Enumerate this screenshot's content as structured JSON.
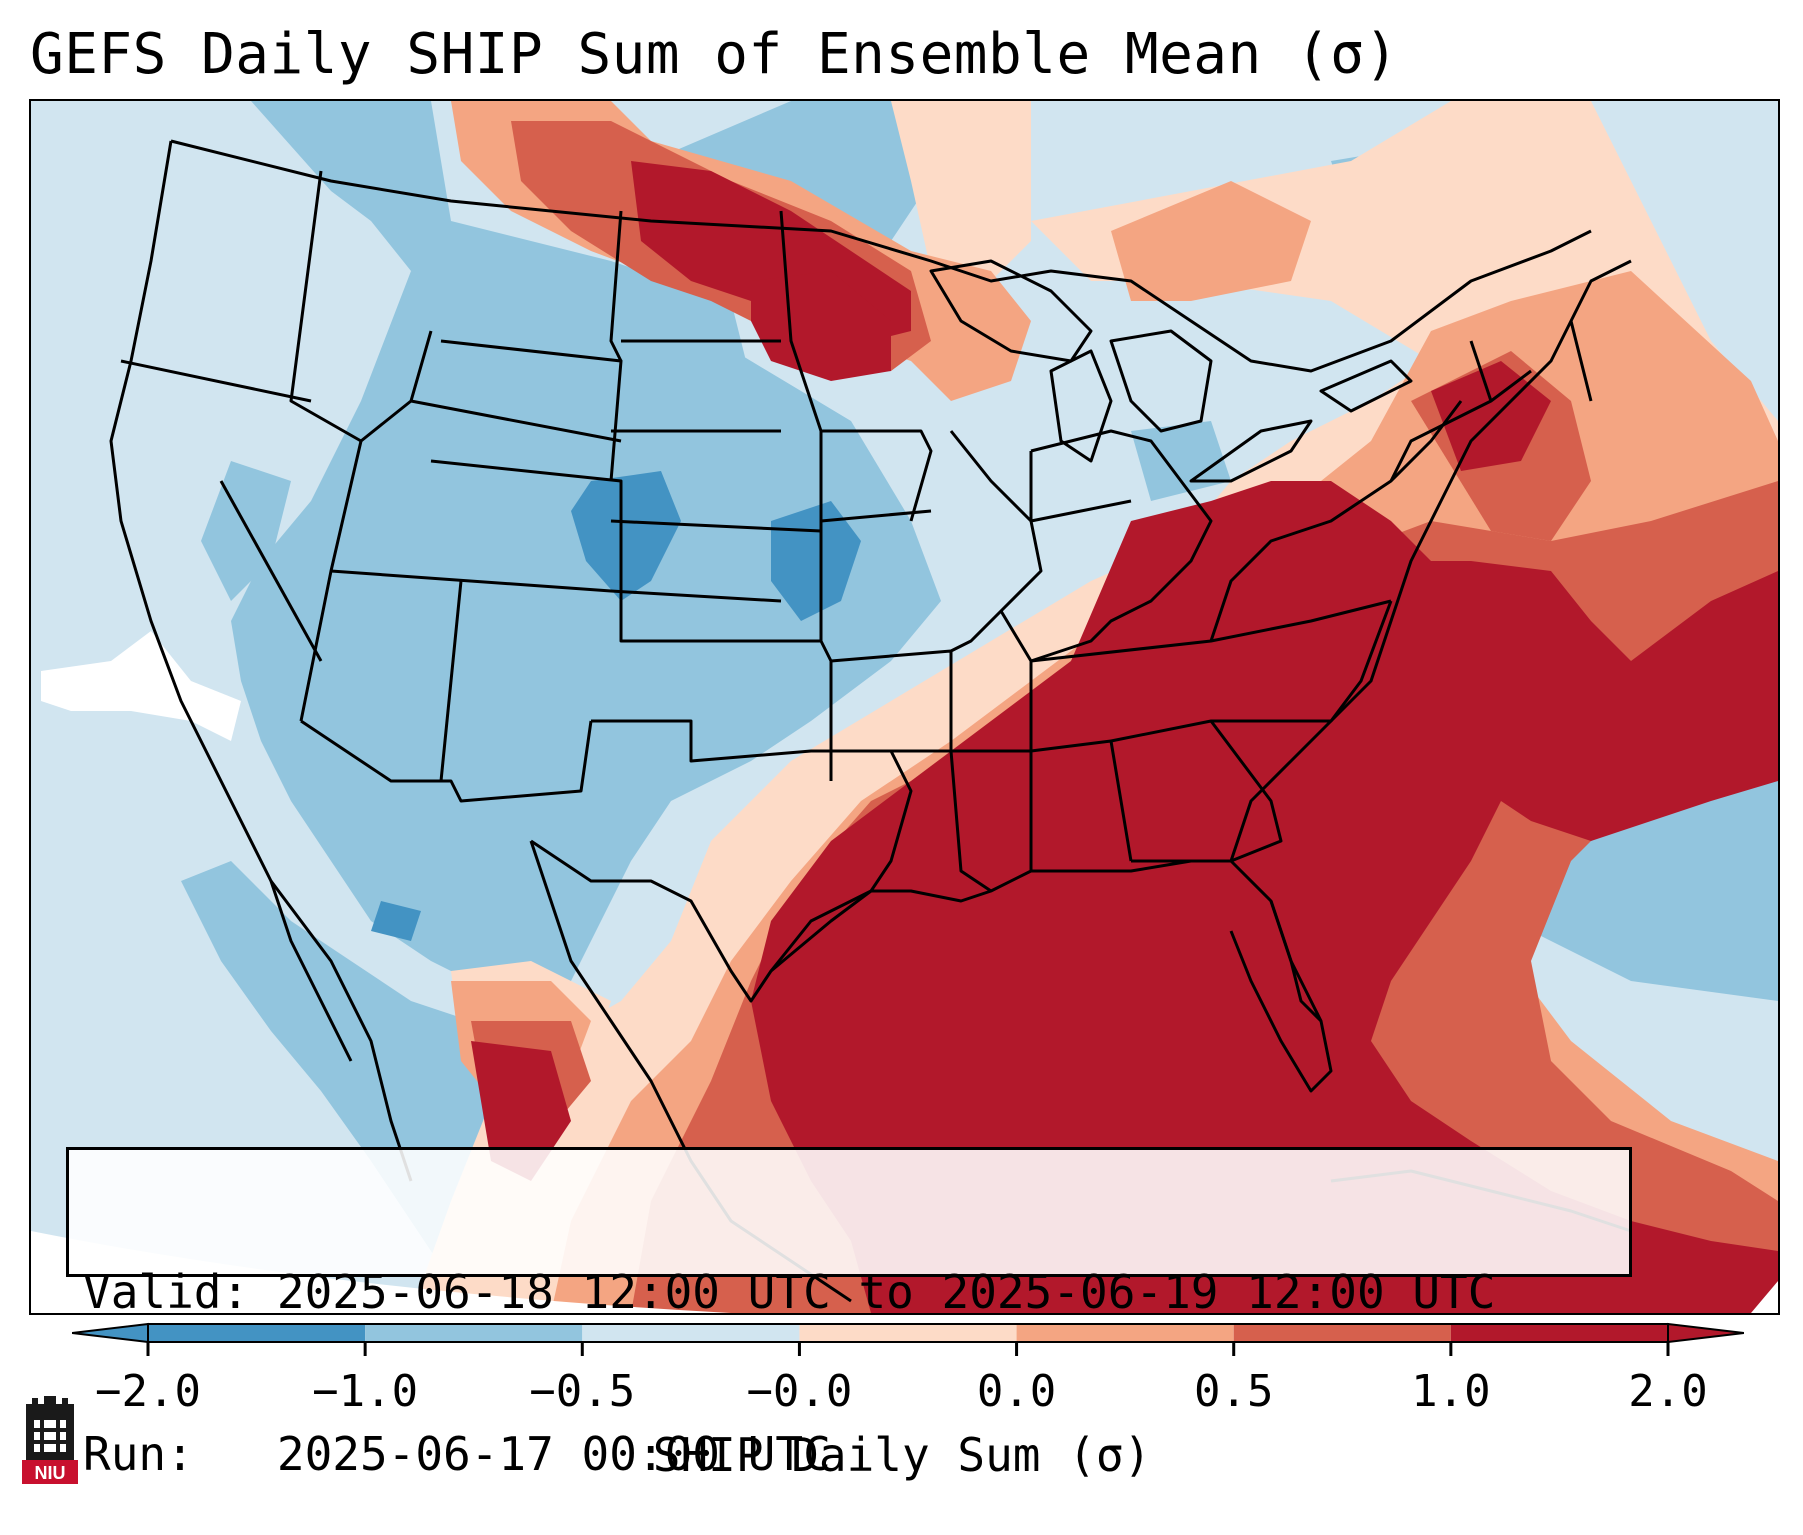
{
  "title": "GEFS Daily SHIP Sum of Ensemble Mean (σ)",
  "info": {
    "valid_label": "Valid:",
    "valid_value": "2025-06-18 12:00 UTC to 2025-06-19 12:00 UTC",
    "run_label": "Run:",
    "run_value": "2025-06-17 00:00 UTC"
  },
  "colorbar": {
    "label": "SHIP Daily Sum (σ)",
    "ticks": [
      "−2.0",
      "−1.0",
      "−0.5",
      "−0.0",
      "0.0",
      "0.5",
      "1.0",
      "2.0"
    ],
    "colors": [
      "#4393c3",
      "#92c5de",
      "#d1e5f0",
      "#ffffff",
      "#fddbc7",
      "#f4a582",
      "#d6604d",
      "#b2182b"
    ],
    "extend": "both"
  },
  "logo": {
    "text": "NIU",
    "color": "#c8102e"
  }
}
